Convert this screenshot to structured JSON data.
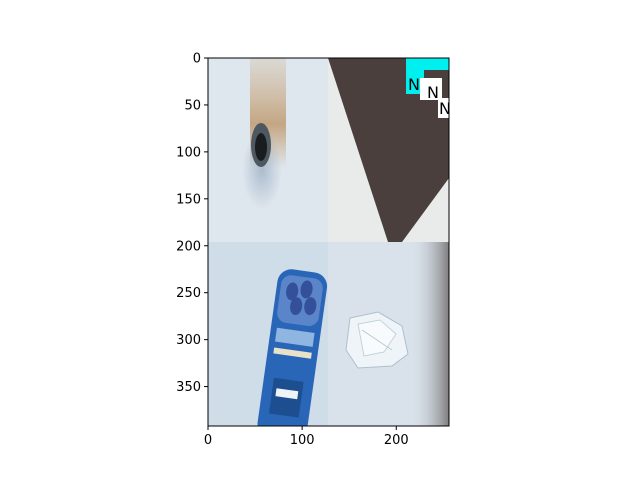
{
  "chart_data": {
    "type": "image-montage",
    "title": "",
    "xlabel": "",
    "ylabel": "",
    "xlim": [
      0,
      256
    ],
    "ylim": [
      392,
      0
    ],
    "x_ticks": [
      0,
      100,
      200
    ],
    "y_ticks": [
      0,
      50,
      100,
      150,
      200,
      250,
      300,
      350
    ],
    "grid": false,
    "panels": [
      {
        "name": "pipe-hole-panel",
        "row": 0,
        "col": 0,
        "background": "#dfe7ee"
      },
      {
        "name": "dark-wedge-panel",
        "row": 0,
        "col": 1,
        "background": "#e9eaea"
      },
      {
        "name": "snack-can-panel",
        "row": 1,
        "col": 0,
        "background": "#cfdde8"
      },
      {
        "name": "plastic-wrapper-panel",
        "row": 1,
        "col": 1,
        "background": "#d9e2ea"
      }
    ],
    "overlay_text": [
      "N",
      "N",
      "N"
    ],
    "colors": {
      "overlay_cyan": "#00f0f0",
      "wedge": "#4a3f3c",
      "can_blue": "#2a66b8"
    }
  }
}
